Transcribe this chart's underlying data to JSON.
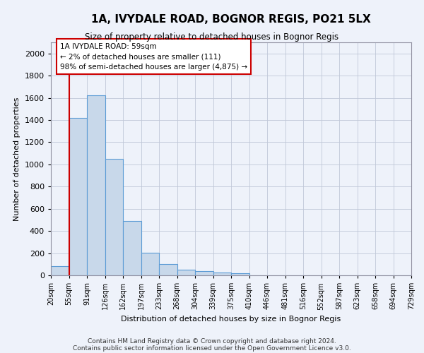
{
  "title": "1A, IVYDALE ROAD, BOGNOR REGIS, PO21 5LX",
  "subtitle": "Size of property relative to detached houses in Bognor Regis",
  "xlabel": "Distribution of detached houses by size in Bognor Regis",
  "ylabel": "Number of detached properties",
  "bar_values": [
    80,
    1420,
    1620,
    1050,
    490,
    205,
    105,
    50,
    38,
    25,
    20,
    0,
    0,
    0,
    0,
    0,
    0,
    0,
    0,
    0
  ],
  "bin_labels": [
    "20sqm",
    "55sqm",
    "91sqm",
    "126sqm",
    "162sqm",
    "197sqm",
    "233sqm",
    "268sqm",
    "304sqm",
    "339sqm",
    "375sqm",
    "410sqm",
    "446sqm",
    "481sqm",
    "516sqm",
    "552sqm",
    "587sqm",
    "623sqm",
    "658sqm",
    "694sqm",
    "729sqm"
  ],
  "bar_color": "#c8d8ea",
  "bar_edge_color": "#5b9bd5",
  "bg_color": "#eef2fa",
  "grid_color": "#c0c8d8",
  "vline_x": 1,
  "vline_color": "#cc0000",
  "ylim": [
    0,
    2100
  ],
  "yticks": [
    0,
    200,
    400,
    600,
    800,
    1000,
    1200,
    1400,
    1600,
    1800,
    2000
  ],
  "annotation_line1": "1A IVYDALE ROAD: 59sqm",
  "annotation_line2": "← 2% of detached houses are smaller (111)",
  "annotation_line3": "98% of semi-detached houses are larger (4,875) →",
  "annotation_box_color": "#ffffff",
  "annotation_box_edge": "#cc0000",
  "footer_line1": "Contains HM Land Registry data © Crown copyright and database right 2024.",
  "footer_line2": "Contains public sector information licensed under the Open Government Licence v3.0."
}
